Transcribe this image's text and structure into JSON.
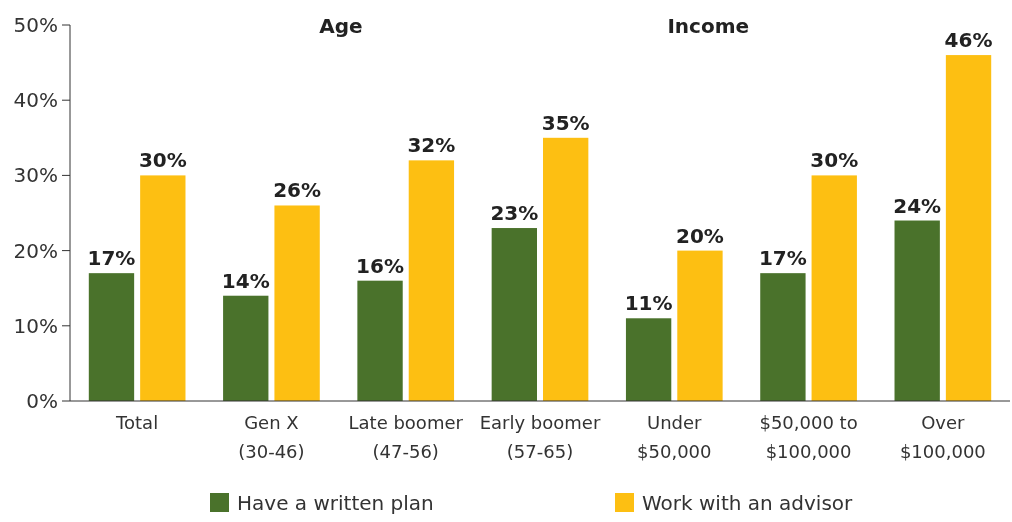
{
  "chart_data": {
    "type": "bar",
    "categories": [
      "Total",
      "Gen X\n(30-46)",
      "Late boomer\n(47-56)",
      "Early boomer\n(57-65)",
      "Under\n$50,000",
      "$50,000 to\n$100,000",
      "Over\n$100,000"
    ],
    "series": [
      {
        "name": "Have a written plan",
        "color": "#4a722b",
        "values": [
          17,
          14,
          16,
          23,
          11,
          17,
          24
        ],
        "value_labels": [
          "17%",
          "14%",
          "16%",
          "23%",
          "11%",
          "17%",
          "24%"
        ]
      },
      {
        "name": "Work with an advisor",
        "color": "#fdbf12",
        "values": [
          30,
          26,
          32,
          35,
          20,
          30,
          46
        ],
        "value_labels": [
          "30%",
          "26%",
          "32%",
          "35%",
          "20%",
          "30%",
          "46%"
        ]
      }
    ],
    "ylim": [
      0,
      50
    ],
    "yticks": [
      {
        "value": 0,
        "label": "0%"
      },
      {
        "value": 10,
        "label": "10%"
      },
      {
        "value": 20,
        "label": "20%"
      },
      {
        "value": 30,
        "label": "30%"
      },
      {
        "value": 40,
        "label": "40%"
      },
      {
        "value": 50,
        "label": "50%"
      }
    ],
    "legend": "bottom",
    "grid": false,
    "annotations": [
      "Age",
      "Income"
    ]
  }
}
